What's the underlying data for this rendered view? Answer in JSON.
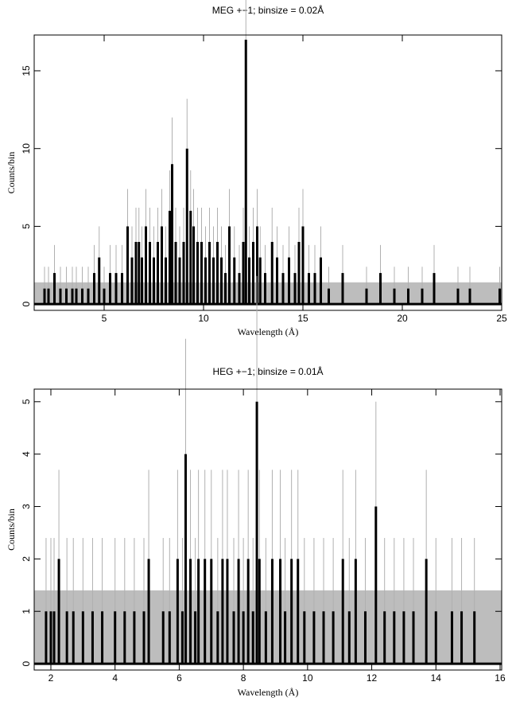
{
  "chart_data": [
    {
      "type": "line",
      "title": "MEG +−1; binsize = 0.02Å",
      "x_label": "Wavelength (Å)",
      "y_label": "Counts/bin",
      "xlim": [
        1.48,
        25
      ],
      "ylim": [
        -0.4,
        17.3
      ],
      "xticks": [
        5,
        10,
        15,
        20,
        25
      ],
      "yticks": [
        0,
        5,
        10,
        15
      ],
      "zero_error": 1.4,
      "band_color": "#bdbdbd",
      "error_color": "#b0b0b0",
      "series": [
        {
          "color": "#000000",
          "x": [
            2.0,
            2.2,
            2.5,
            2.8,
            3.1,
            3.4,
            3.6,
            3.9,
            4.2,
            4.5,
            4.75,
            5.0,
            5.3,
            5.6,
            5.9,
            6.18,
            6.4,
            6.6,
            6.75,
            6.9,
            7.1,
            7.3,
            7.5,
            7.7,
            7.9,
            8.1,
            8.3,
            8.42,
            8.6,
            8.8,
            9.0,
            9.17,
            9.35,
            9.5,
            9.7,
            9.9,
            10.1,
            10.3,
            10.5,
            10.7,
            10.9,
            11.1,
            11.3,
            11.55,
            11.8,
            12.0,
            12.13,
            12.3,
            12.5,
            12.7,
            12.85,
            13.1,
            13.45,
            13.7,
            14.0,
            14.3,
            14.6,
            14.8,
            15.0,
            15.3,
            15.6,
            15.9,
            16.3,
            17.0,
            18.2,
            18.9,
            19.6,
            20.3,
            21.0,
            21.6,
            22.8,
            23.4,
            24.9
          ],
          "values": [
            1,
            1,
            2,
            1,
            1,
            1,
            1,
            1,
            1,
            2,
            3,
            1,
            2,
            2,
            2,
            5,
            3,
            4,
            4,
            3,
            5,
            4,
            3,
            4,
            5,
            3,
            6,
            9,
            4,
            3,
            4,
            10,
            6,
            5,
            4,
            4,
            3,
            4,
            3,
            4,
            3,
            2,
            5,
            3,
            2,
            4,
            17,
            3,
            4,
            5,
            3,
            2,
            4,
            3,
            2,
            3,
            2,
            4,
            5,
            2,
            2,
            3,
            1,
            2,
            1,
            2,
            1,
            1,
            1,
            2,
            1,
            1,
            1
          ],
          "errors": [
            1.4,
            1.4,
            1.8,
            1.4,
            1.4,
            1.4,
            1.4,
            1.4,
            1.4,
            1.8,
            2.0,
            1.4,
            1.8,
            1.8,
            1.8,
            2.4,
            2.0,
            2.2,
            2.2,
            2.0,
            2.4,
            2.2,
            2.0,
            2.2,
            2.4,
            2.0,
            2.6,
            3.0,
            2.2,
            2.0,
            2.2,
            3.2,
            2.6,
            2.4,
            2.2,
            2.2,
            2.0,
            2.2,
            2.0,
            2.2,
            2.0,
            1.8,
            2.4,
            2.0,
            1.8,
            2.2,
            4.0,
            2.0,
            2.2,
            2.4,
            2.0,
            1.8,
            2.2,
            2.0,
            1.8,
            2.0,
            1.8,
            2.2,
            2.4,
            1.8,
            1.8,
            2.0,
            1.4,
            1.8,
            1.4,
            1.8,
            1.4,
            1.4,
            1.4,
            1.8,
            1.4,
            1.4,
            1.4
          ]
        }
      ]
    },
    {
      "type": "line",
      "title": "HEG +−1; binsize = 0.01Å",
      "x_label": "Wavelength (Å)",
      "y_label": "Counts/bin",
      "xlim": [
        1.48,
        16.05
      ],
      "ylim": [
        -0.12,
        5.24
      ],
      "xticks": [
        2,
        4,
        6,
        8,
        10,
        12,
        14,
        16
      ],
      "yticks": [
        0,
        1,
        2,
        3,
        4,
        5
      ],
      "zero_error": 1.4,
      "band_color": "#bdbdbd",
      "error_color": "#b0b0b0",
      "series": [
        {
          "color": "#000000",
          "x": [
            1.85,
            2.0,
            2.1,
            2.25,
            2.5,
            2.7,
            3.0,
            3.3,
            3.6,
            4.0,
            4.3,
            4.6,
            4.9,
            5.05,
            5.5,
            5.7,
            5.95,
            6.1,
            6.2,
            6.35,
            6.5,
            6.6,
            6.8,
            7.0,
            7.2,
            7.35,
            7.5,
            7.7,
            7.85,
            8.0,
            8.15,
            8.3,
            8.42,
            8.5,
            8.7,
            8.9,
            9.15,
            9.3,
            9.5,
            9.7,
            9.9,
            10.2,
            10.5,
            10.8,
            11.1,
            11.3,
            11.5,
            11.8,
            12.13,
            12.4,
            12.7,
            13.0,
            13.3,
            13.7,
            14.0,
            14.5,
            14.8,
            15.2
          ],
          "values": [
            1,
            1,
            1,
            2,
            1,
            1,
            1,
            1,
            1,
            1,
            1,
            1,
            1,
            2,
            1,
            1,
            2,
            1,
            4,
            2,
            1,
            2,
            2,
            2,
            1,
            2,
            2,
            1,
            2,
            1,
            2,
            1,
            5,
            2,
            1,
            2,
            2,
            1,
            2,
            2,
            1,
            1,
            1,
            1,
            2,
            1,
            2,
            1,
            3,
            1,
            1,
            1,
            1,
            2,
            1,
            1,
            1,
            1
          ],
          "errors": [
            1.4,
            1.4,
            1.4,
            1.7,
            1.4,
            1.4,
            1.4,
            1.4,
            1.4,
            1.4,
            1.4,
            1.4,
            1.4,
            1.7,
            1.4,
            1.4,
            1.7,
            1.4,
            2.2,
            1.7,
            1.4,
            1.7,
            1.7,
            1.7,
            1.4,
            1.7,
            1.7,
            1.4,
            1.7,
            1.4,
            1.7,
            1.4,
            2.4,
            1.7,
            1.4,
            1.7,
            1.7,
            1.4,
            1.7,
            1.7,
            1.4,
            1.4,
            1.4,
            1.4,
            1.7,
            1.4,
            1.7,
            1.4,
            2.0,
            1.4,
            1.4,
            1.4,
            1.4,
            1.7,
            1.4,
            1.4,
            1.4,
            1.4
          ]
        }
      ]
    }
  ]
}
